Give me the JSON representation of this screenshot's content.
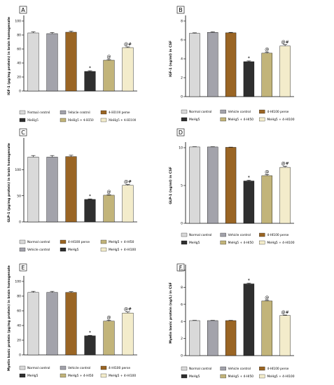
{
  "colors": {
    "normal_control": "#d9d9d9",
    "vehicle_control": "#a3a3ab",
    "hi100_perse": "#9a6524",
    "mehg5": "#2f2f2f",
    "mehg5_hi50": "#c2b47a",
    "mehg5_hi100": "#f3eccb"
  },
  "chart_data": [
    {
      "panel": "A",
      "type": "bar",
      "ylabel": "IGF-1 (pg/mg protein) in brain homogenate",
      "ylim": [
        0,
        100
      ],
      "yticks": [
        "0",
        "20",
        "40",
        "60",
        "80",
        "100"
      ],
      "grid": false,
      "categories": [
        "Normal control",
        "Vehicle control",
        "4-HI100 perse",
        "MeHg5",
        "MeHg5 + 4-HI50",
        "MeHg5 + 4-HI100"
      ],
      "values": [
        83,
        82,
        84,
        28,
        44,
        62
      ],
      "errors": [
        1.5,
        1.5,
        1.5,
        1,
        1,
        1
      ],
      "annotations": [
        "",
        "",
        "",
        "*",
        "@",
        "@#"
      ],
      "legend_labels": [
        "Normal control",
        "Vehicle control",
        "4-HI100 perse",
        "MeHg5",
        "MeHg5 + 4-HI50",
        "MeHg5 + 4-HI100"
      ],
      "legend_columns": 3,
      "legend_order": [
        0,
        1,
        2,
        3,
        4,
        5
      ],
      "legend_font": "serif"
    },
    {
      "panel": "B",
      "type": "bar",
      "ylabel": "IGF-1 (ng/ml) in CSF",
      "ylim": [
        0,
        8
      ],
      "yticks": [
        "0",
        "2",
        "4",
        "6",
        "8"
      ],
      "grid": false,
      "categories": [
        "Normal control",
        "Vehicle control",
        "4-HI100 perse",
        "MeHg5",
        "MeHg5 + 4-HI50",
        "MeHg5 + 4-HI100"
      ],
      "values": [
        6.7,
        6.8,
        6.75,
        3.7,
        4.6,
        5.35
      ],
      "errors": [
        0.05,
        0.05,
        0.05,
        0.08,
        0.1,
        0.15
      ],
      "annotations": [
        "",
        "",
        "",
        "*",
        "@",
        "@#"
      ],
      "legend_labels": [
        "Normal control",
        "Vehicle control",
        "4-HI100 perse",
        "MeHg5",
        "MeHg5 + 4-HI50",
        "MeHg5 + 4-HI100"
      ],
      "legend_columns": 3,
      "legend_order": [
        0,
        1,
        2,
        3,
        4,
        5
      ],
      "legend_font": "sans"
    },
    {
      "panel": "C",
      "type": "bar",
      "ylabel": "GLP-1 (pg/mg protein) in brain homogenate",
      "ylim": [
        0,
        150
      ],
      "yticks": [
        "0",
        "50",
        "100"
      ],
      "grid": false,
      "categories": [
        "Normal control",
        "Vehicle control",
        "4-HI100 perse",
        "MeHg5",
        "MeHg5 + 4-HI50",
        "MeHg5 + 4-HI100"
      ],
      "values": [
        124,
        124,
        125,
        43,
        51,
        70
      ],
      "errors": [
        3,
        3,
        2.5,
        1,
        1,
        1.5
      ],
      "annotations": [
        "",
        "",
        "",
        "*",
        "@",
        "@#"
      ],
      "legend_labels": [
        "Normal control",
        "Vehicle control",
        "4-HI100 perse",
        "MeHg5",
        "MeHg5 + 4-HI50",
        "MeHg5 + 4-HI100"
      ],
      "legend_columns": 3,
      "legend_order": [
        0,
        2,
        4,
        1,
        3,
        5
      ],
      "legend_font": "sans"
    },
    {
      "panel": "D",
      "type": "bar",
      "ylabel": "GLP-1 (ng/ml) in CSF",
      "ylim": [
        0,
        10
      ],
      "yticks": [
        "0",
        "5",
        "10"
      ],
      "grid": false,
      "categories": [
        "Normal control",
        "Vehicle control",
        "4-HI100 perse",
        "MeHg5",
        "MeHg5 + 4-HI50",
        "MeHg5 + 4-HI100"
      ],
      "values": [
        10.1,
        10.1,
        10.05,
        5.6,
        6.3,
        7.4
      ],
      "errors": [
        0.03,
        0.03,
        0.03,
        0.1,
        0.12,
        0.15
      ],
      "annotations": [
        "",
        "",
        "",
        "*",
        "@",
        "@#"
      ],
      "legend_labels": [
        "Normal control",
        "Vehicle control",
        "4-HI100 perse",
        "MeHg5",
        "MeHg5 + 4-HI50",
        "MeHg5 + 4-HI100"
      ],
      "legend_columns": 3,
      "legend_order": [
        0,
        1,
        2,
        3,
        4,
        5
      ],
      "legend_font": "sans"
    },
    {
      "panel": "E",
      "type": "bar",
      "ylabel": "Myelin basic protein (pg/mg protein) in brain homogenate",
      "ylim": [
        0,
        100
      ],
      "yticks": [
        "0",
        "20",
        "40",
        "60",
        "80",
        "100"
      ],
      "grid": false,
      "categories": [
        "Normal control",
        "Vehicle control",
        "4-HI100 perse",
        "MeHg5",
        "MeHg5 + 4-HI50",
        "MeHg5 + 4-HI100"
      ],
      "values": [
        85,
        85,
        85,
        26,
        46,
        57
      ],
      "errors": [
        1.5,
        1.5,
        1,
        0.5,
        1,
        1.5
      ],
      "annotations": [
        "",
        "",
        "",
        "*",
        "@",
        "@#"
      ],
      "legend_labels": [
        "Normal control",
        "Vehicle control",
        "4-HI100 perse",
        "MeHg5",
        "MeHg5 + 4-HI50",
        "MeHg5 + 4-HI100"
      ],
      "legend_columns": 3,
      "legend_order": [
        0,
        1,
        2,
        3,
        4,
        5
      ],
      "legend_font": "sans"
    },
    {
      "panel": "F",
      "type": "bar",
      "ylabel": "Myelin basic protein (ng/L) in CSF",
      "ylim": [
        0,
        10
      ],
      "yticks": [
        "0",
        "2",
        "4",
        "6",
        "8",
        "10"
      ],
      "grid": false,
      "categories": [
        "Normal control",
        "Vehicle control",
        "4-HI100 perse",
        "MeHg5",
        "MeHg5 + 4-HI50",
        "MeHg5 + 4-HI100"
      ],
      "values": [
        4.1,
        4.1,
        4.1,
        8.4,
        6.4,
        4.7
      ],
      "errors": [
        0.03,
        0.03,
        0.03,
        0.08,
        0.08,
        0.05
      ],
      "annotations": [
        "",
        "",
        "",
        "*",
        "@",
        "@#"
      ],
      "legend_labels": [
        "Normal control",
        "Vehicle control",
        "4-HI100 perse",
        "MeHg5",
        "MeHg5 + 4-HI50",
        "MeHg5 + 4-HI100"
      ],
      "legend_columns": 3,
      "legend_order": [
        0,
        1,
        2,
        3,
        4,
        5
      ],
      "legend_font": "sans"
    }
  ]
}
